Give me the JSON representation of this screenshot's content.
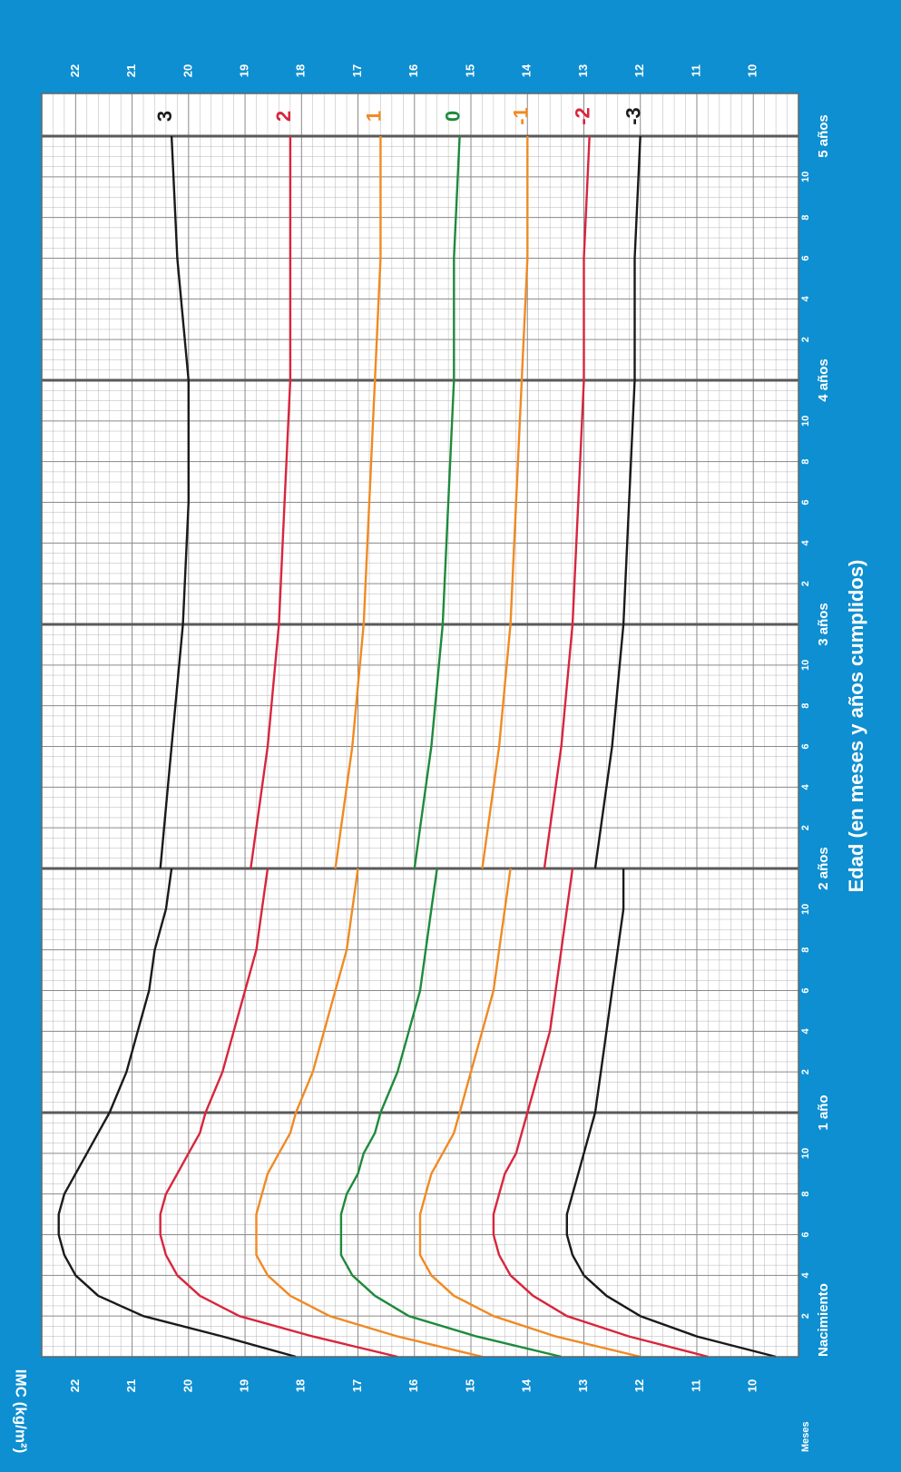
{
  "chart_data": {
    "type": "line",
    "orientation": "rotated-90-ccw",
    "xlabel": "Edad (en meses y años cumplidos)",
    "ylabel": "IMC (kg/m²)",
    "x_unit": "months",
    "xlim": [
      0,
      60
    ],
    "ylim": [
      9.2,
      22.6
    ],
    "y_ticks": [
      10,
      11,
      12,
      13,
      14,
      15,
      16,
      17,
      18,
      19,
      20,
      21,
      22
    ],
    "month_ticks": [
      2,
      4,
      6,
      8,
      10
    ],
    "month_axis_label": "Meses",
    "year_labels": [
      "Nacimiento",
      "1 año",
      "2 años",
      "3 años",
      "4 años",
      "5 años"
    ],
    "grid": true,
    "break_at_month": 24,
    "series": [
      {
        "name": "3",
        "color": "#1a1a1a",
        "x": [
          0,
          1,
          2,
          3,
          4,
          5,
          6,
          7,
          8,
          9,
          10,
          11,
          12,
          14,
          16,
          18,
          20,
          22,
          24,
          24,
          30,
          36,
          42,
          48,
          54,
          60
        ],
        "y": [
          18.1,
          19.4,
          20.8,
          21.6,
          22.0,
          22.2,
          22.3,
          22.3,
          22.2,
          22.0,
          21.8,
          21.6,
          21.4,
          21.1,
          20.9,
          20.7,
          20.6,
          20.4,
          20.3,
          20.5,
          20.3,
          20.1,
          20.0,
          20.0,
          20.2,
          20.3
        ]
      },
      {
        "name": "2",
        "color": "#d7263d",
        "x": [
          0,
          1,
          2,
          3,
          4,
          5,
          6,
          7,
          8,
          9,
          10,
          11,
          12,
          14,
          16,
          18,
          20,
          22,
          24,
          24,
          30,
          36,
          42,
          48,
          54,
          60
        ],
        "y": [
          16.3,
          17.8,
          19.1,
          19.8,
          20.2,
          20.4,
          20.5,
          20.5,
          20.4,
          20.2,
          20.0,
          19.8,
          19.7,
          19.4,
          19.2,
          19.0,
          18.8,
          18.7,
          18.6,
          18.9,
          18.6,
          18.4,
          18.3,
          18.2,
          18.2,
          18.2
        ]
      },
      {
        "name": "1",
        "color": "#f08a24",
        "x": [
          0,
          1,
          2,
          3,
          4,
          5,
          6,
          7,
          8,
          9,
          10,
          11,
          12,
          14,
          16,
          18,
          20,
          22,
          24,
          24,
          30,
          36,
          42,
          48,
          54,
          60
        ],
        "y": [
          14.8,
          16.3,
          17.5,
          18.2,
          18.6,
          18.8,
          18.8,
          18.8,
          18.7,
          18.6,
          18.4,
          18.2,
          18.1,
          17.8,
          17.6,
          17.4,
          17.2,
          17.1,
          17.0,
          17.4,
          17.1,
          16.9,
          16.8,
          16.7,
          16.6,
          16.6
        ]
      },
      {
        "name": "0",
        "color": "#1e8a3c",
        "x": [
          0,
          1,
          2,
          3,
          4,
          5,
          6,
          7,
          8,
          9,
          10,
          11,
          12,
          14,
          16,
          18,
          20,
          22,
          24,
          24,
          30,
          36,
          42,
          48,
          54,
          60
        ],
        "y": [
          13.4,
          14.9,
          16.1,
          16.7,
          17.1,
          17.3,
          17.3,
          17.3,
          17.2,
          17.0,
          16.9,
          16.7,
          16.6,
          16.3,
          16.1,
          15.9,
          15.8,
          15.7,
          15.6,
          16.0,
          15.7,
          15.5,
          15.4,
          15.3,
          15.3,
          15.2
        ]
      },
      {
        "name": "-1",
        "color": "#f08a24",
        "x": [
          0,
          1,
          2,
          3,
          4,
          5,
          6,
          7,
          8,
          9,
          10,
          11,
          12,
          14,
          16,
          18,
          20,
          22,
          24,
          24,
          30,
          36,
          42,
          48,
          54,
          60
        ],
        "y": [
          12.0,
          13.5,
          14.6,
          15.3,
          15.7,
          15.9,
          15.9,
          15.9,
          15.8,
          15.7,
          15.5,
          15.3,
          15.2,
          15.0,
          14.8,
          14.6,
          14.5,
          14.4,
          14.3,
          14.8,
          14.5,
          14.3,
          14.2,
          14.1,
          14.0,
          14.0
        ]
      },
      {
        "name": "-2",
        "color": "#d7263d",
        "x": [
          0,
          1,
          2,
          3,
          4,
          5,
          6,
          7,
          8,
          9,
          10,
          11,
          12,
          14,
          16,
          18,
          20,
          22,
          24,
          24,
          30,
          36,
          42,
          48,
          54,
          60
        ],
        "y": [
          10.8,
          12.2,
          13.3,
          13.9,
          14.3,
          14.5,
          14.6,
          14.6,
          14.5,
          14.4,
          14.2,
          14.1,
          14.0,
          13.8,
          13.6,
          13.5,
          13.4,
          13.3,
          13.2,
          13.7,
          13.4,
          13.2,
          13.1,
          13.0,
          13.0,
          12.9
        ]
      },
      {
        "name": "-3",
        "color": "#1a1a1a",
        "x": [
          0,
          1,
          2,
          3,
          4,
          5,
          6,
          7,
          8,
          9,
          10,
          11,
          12,
          14,
          16,
          18,
          20,
          22,
          24,
          24,
          30,
          36,
          42,
          48,
          54,
          60
        ],
        "y": [
          9.6,
          11.0,
          12.0,
          12.6,
          13.0,
          13.2,
          13.3,
          13.3,
          13.2,
          13.1,
          13.0,
          12.9,
          12.8,
          12.7,
          12.6,
          12.5,
          12.4,
          12.3,
          12.3,
          12.8,
          12.5,
          12.3,
          12.2,
          12.1,
          12.1,
          12.0
        ]
      }
    ]
  }
}
